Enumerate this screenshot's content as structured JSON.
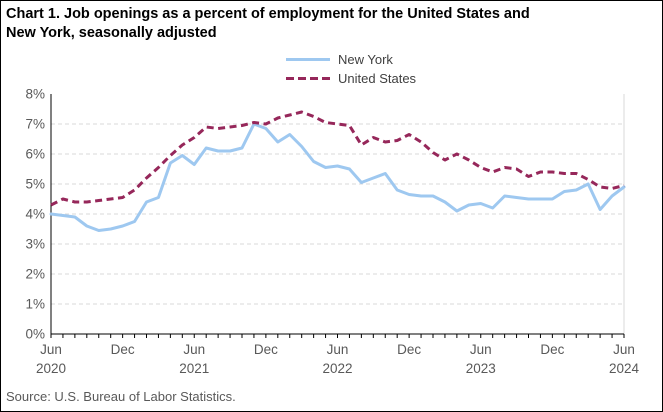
{
  "header": {
    "title": "Chart 1. Job openings as a percent of employment for the United States and\nNew York, seasonally adjusted"
  },
  "legend": {
    "items": [
      {
        "label": "New York",
        "color": "#9EC8F0",
        "style": "solid"
      },
      {
        "label": "United States",
        "color": "#96275A",
        "style": "dashed"
      }
    ]
  },
  "footer": {
    "source": "Source: U.S. Bureau of Labor Statistics."
  },
  "chart_data": {
    "type": "line",
    "title": "Chart 1. Job openings as a percent of employment for the United States and New York, seasonally adjusted",
    "xlabel": "",
    "ylabel": "",
    "ylim": [
      0,
      8
    ],
    "y_ticks": [
      "0%",
      "1%",
      "2%",
      "3%",
      "4%",
      "5%",
      "6%",
      "7%",
      "8%"
    ],
    "grid": true,
    "legend_position": "top",
    "x": [
      "Jun 2020",
      "Jul 2020",
      "Aug 2020",
      "Sep 2020",
      "Oct 2020",
      "Nov 2020",
      "Dec 2020",
      "Jan 2021",
      "Feb 2021",
      "Mar 2021",
      "Apr 2021",
      "May 2021",
      "Jun 2021",
      "Jul 2021",
      "Aug 2021",
      "Sep 2021",
      "Oct 2021",
      "Nov 2021",
      "Dec 2021",
      "Jan 2022",
      "Feb 2022",
      "Mar 2022",
      "Apr 2022",
      "May 2022",
      "Jun 2022",
      "Jul 2022",
      "Aug 2022",
      "Sep 2022",
      "Oct 2022",
      "Nov 2022",
      "Dec 2022",
      "Jan 2023",
      "Feb 2023",
      "Mar 2023",
      "Apr 2023",
      "May 2023",
      "Jun 2023",
      "Jul 2023",
      "Aug 2023",
      "Sep 2023",
      "Oct 2023",
      "Nov 2023",
      "Dec 2023",
      "Jan 2024",
      "Feb 2024",
      "Mar 2024",
      "Apr 2024",
      "May 2024",
      "Jun 2024"
    ],
    "x_tick_labels": [
      {
        "index": 0,
        "month": "Jun",
        "year": "2020"
      },
      {
        "index": 6,
        "month": "Dec"
      },
      {
        "index": 12,
        "month": "Jun",
        "year": "2021"
      },
      {
        "index": 18,
        "month": "Dec"
      },
      {
        "index": 24,
        "month": "Jun",
        "year": "2022"
      },
      {
        "index": 30,
        "month": "Dec"
      },
      {
        "index": 36,
        "month": "Jun",
        "year": "2023"
      },
      {
        "index": 42,
        "month": "Dec"
      },
      {
        "index": 48,
        "month": "Jun",
        "year": "2024"
      }
    ],
    "series": [
      {
        "name": "New York",
        "color": "#9EC8F0",
        "dash": false,
        "values": [
          4.0,
          3.95,
          3.9,
          3.6,
          3.45,
          3.5,
          3.6,
          3.75,
          4.4,
          4.55,
          5.7,
          5.95,
          5.65,
          6.2,
          6.1,
          6.1,
          6.2,
          7.0,
          6.85,
          6.4,
          6.65,
          6.25,
          5.75,
          5.55,
          5.6,
          5.5,
          5.05,
          5.2,
          5.35,
          4.8,
          4.65,
          4.6,
          4.6,
          4.4,
          4.1,
          4.3,
          4.35,
          4.2,
          4.6,
          4.55,
          4.5,
          4.5,
          4.5,
          4.75,
          4.8,
          5.0,
          4.15,
          4.6,
          4.9
        ]
      },
      {
        "name": "United States",
        "color": "#96275A",
        "dash": true,
        "values": [
          4.3,
          4.5,
          4.4,
          4.4,
          4.45,
          4.5,
          4.55,
          4.8,
          5.2,
          5.55,
          5.95,
          6.3,
          6.55,
          6.9,
          6.85,
          6.9,
          6.95,
          7.05,
          7.0,
          7.2,
          7.3,
          7.4,
          7.25,
          7.05,
          7.0,
          6.95,
          6.3,
          6.55,
          6.4,
          6.45,
          6.65,
          6.4,
          6.05,
          5.8,
          6.0,
          5.8,
          5.55,
          5.4,
          5.55,
          5.5,
          5.25,
          5.4,
          5.4,
          5.35,
          5.35,
          5.15,
          4.9,
          4.85,
          4.95
        ]
      }
    ]
  }
}
